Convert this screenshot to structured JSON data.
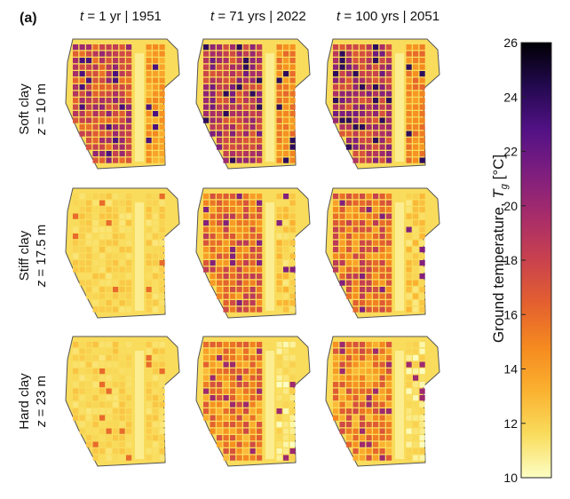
{
  "panel_label": "(a)",
  "columns": [
    {
      "t_var": "t",
      "t_rest": " = 1 yr | 1951"
    },
    {
      "t_var": "t",
      "t_rest": " = 71 yrs | 2022"
    },
    {
      "t_var": "t",
      "t_rest": " = 100 yrs | 2051"
    }
  ],
  "rows": [
    {
      "soil": "Soft clay",
      "z_var": "z",
      "z_rest": " = 10 m"
    },
    {
      "soil": "Stiff clay",
      "z_var": "z",
      "z_rest": " = 17.5 m"
    },
    {
      "soil": "Hard clay",
      "z_var": "z",
      "z_rest": " = 23 m"
    }
  ],
  "colorbar": {
    "title_main": "Ground temperature,",
    "title_symbol": "T",
    "title_subscript": "g",
    "title_unit": "[°C]",
    "min": 10,
    "max": 26,
    "ticks": [
      10,
      12,
      14,
      16,
      18,
      20,
      22,
      24,
      26
    ],
    "colormap": "inferno-reversed",
    "stops": [
      "#fcfec4",
      "#f9dc5c",
      "#fbb130",
      "#f58a1f",
      "#e4602f",
      "#c9424d",
      "#a82c6a",
      "#7e1e7f",
      "#521185",
      "#23094f",
      "#000004"
    ]
  },
  "chart_data": {
    "type": "heatmap",
    "title": "",
    "x": [
      "t = 1 yr | 1951",
      "t = 71 yrs | 2022",
      "t = 100 yrs | 2051"
    ],
    "y": [
      "Soft clay z = 10 m",
      "Stiff clay z = 17.5 m",
      "Hard clay z = 23 m"
    ],
    "value_label": "Ground temperature, Tg [°C]",
    "vmin": 10,
    "vmax": 26,
    "approx_dominant_values_degC": [
      [
        18,
        19,
        19
      ],
      [
        12,
        16,
        16
      ],
      [
        12,
        15,
        15
      ]
    ]
  }
}
